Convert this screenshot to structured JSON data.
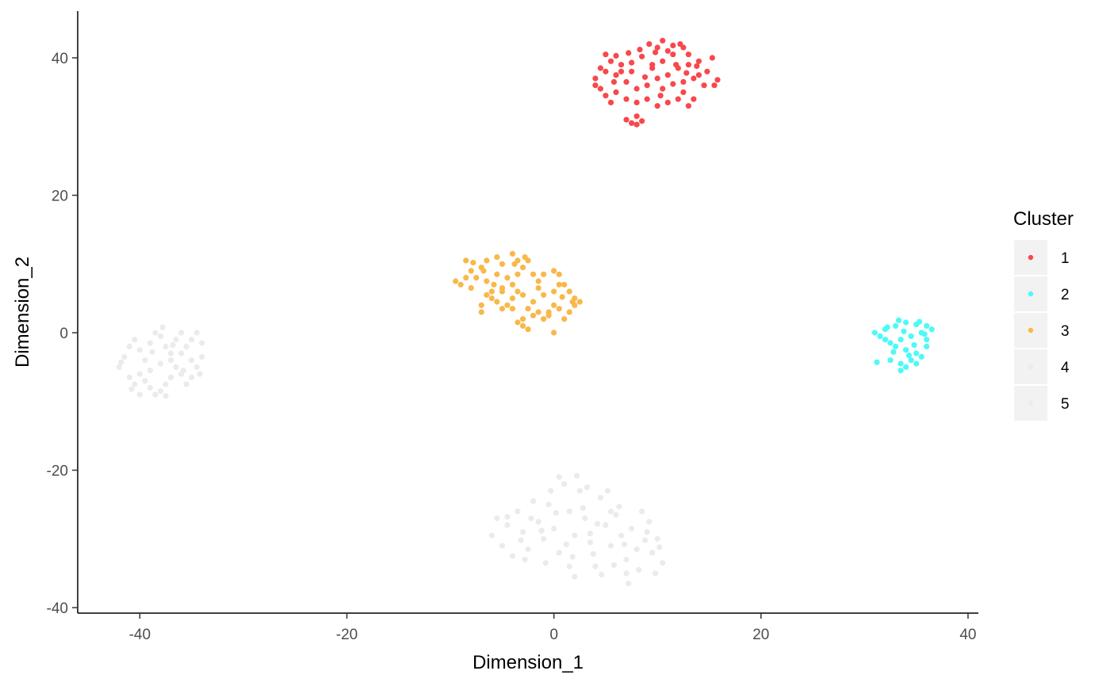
{
  "chart_data": {
    "type": "scatter",
    "title": "",
    "xlabel": "Dimension_1",
    "ylabel": "Dimension_2",
    "xlim": [
      -46,
      41
    ],
    "ylim": [
      -40.8,
      46.8
    ],
    "x_ticks": [
      -40,
      -20,
      0,
      20,
      40
    ],
    "y_ticks": [
      -40,
      -20,
      0,
      20,
      40
    ],
    "grid": false,
    "legend": {
      "title": "Cluster",
      "placement": "right"
    },
    "series": [
      {
        "name": "1",
        "color": "#F8484C",
        "points": [
          [
            5.0,
            40.5
          ],
          [
            6.0,
            40.3
          ],
          [
            7.5,
            39.3
          ],
          [
            8.5,
            40.2
          ],
          [
            9.5,
            39.0
          ],
          [
            10.5,
            42.5
          ],
          [
            11.5,
            41.8
          ],
          [
            12.5,
            41.5
          ],
          [
            13.0,
            40.5
          ],
          [
            14.0,
            39.5
          ],
          [
            15.3,
            40.0
          ],
          [
            14.8,
            38.0
          ],
          [
            15.8,
            36.8
          ],
          [
            15.5,
            36.0
          ],
          [
            13.5,
            37.0
          ],
          [
            12.5,
            36.5
          ],
          [
            11.0,
            37.5
          ],
          [
            10.0,
            37.0
          ],
          [
            9.0,
            36.0
          ],
          [
            8.0,
            35.5
          ],
          [
            7.0,
            36.5
          ],
          [
            6.0,
            37.5
          ],
          [
            5.0,
            38.0
          ],
          [
            4.5,
            38.5
          ],
          [
            4.0,
            37.0
          ],
          [
            4.0,
            36.0
          ],
          [
            5.0,
            34.5
          ],
          [
            6.0,
            35.0
          ],
          [
            5.5,
            33.5
          ],
          [
            7.0,
            34.0
          ],
          [
            8.0,
            33.5
          ],
          [
            9.0,
            34.0
          ],
          [
            10.0,
            33.0
          ],
          [
            11.0,
            33.5
          ],
          [
            12.0,
            34.0
          ],
          [
            13.0,
            33.0
          ],
          [
            13.5,
            34.0
          ],
          [
            12.5,
            35.0
          ],
          [
            10.5,
            35.5
          ],
          [
            9.5,
            38.5
          ],
          [
            10.5,
            39.5
          ],
          [
            11.5,
            40.5
          ],
          [
            12.0,
            38.5
          ],
          [
            13.0,
            39.0
          ],
          [
            14.0,
            37.5
          ],
          [
            7.5,
            38.0
          ],
          [
            6.5,
            39.0
          ],
          [
            5.5,
            39.5
          ],
          [
            8.0,
            31.5
          ],
          [
            8.5,
            30.8
          ],
          [
            7.5,
            30.5
          ],
          [
            7.0,
            31.0
          ],
          [
            8.0,
            30.3
          ],
          [
            8.8,
            37.2
          ],
          [
            9.8,
            40.8
          ],
          [
            11.0,
            41.0
          ],
          [
            12.2,
            42.0
          ],
          [
            6.5,
            38.0
          ],
          [
            5.8,
            36.5
          ],
          [
            4.5,
            35.5
          ],
          [
            14.5,
            36.0
          ],
          [
            12.8,
            37.8
          ],
          [
            11.8,
            39.0
          ],
          [
            9.2,
            42.0
          ],
          [
            8.3,
            41.2
          ],
          [
            7.2,
            40.7
          ],
          [
            10.3,
            34.5
          ],
          [
            11.5,
            36.2
          ],
          [
            13.8,
            38.8
          ],
          [
            10.0,
            41.5
          ]
        ]
      },
      {
        "name": "2",
        "color": "#4EF9F7",
        "points": [
          [
            31.0,
            0.0
          ],
          [
            32.0,
            0.5
          ],
          [
            33.0,
            1.0
          ],
          [
            34.0,
            1.5
          ],
          [
            35.0,
            1.2
          ],
          [
            36.0,
            1.0
          ],
          [
            36.5,
            0.5
          ],
          [
            35.5,
            0.0
          ],
          [
            34.5,
            -0.5
          ],
          [
            33.5,
            -1.0
          ],
          [
            32.5,
            -1.5
          ],
          [
            32.0,
            -1.0
          ],
          [
            31.5,
            -0.5
          ],
          [
            33.0,
            -2.0
          ],
          [
            34.0,
            -2.5
          ],
          [
            35.0,
            -3.0
          ],
          [
            36.0,
            -2.0
          ],
          [
            35.5,
            -3.5
          ],
          [
            34.5,
            -4.0
          ],
          [
            33.5,
            -4.5
          ],
          [
            32.5,
            -4.0
          ],
          [
            34.0,
            -5.0
          ],
          [
            33.5,
            -5.5
          ],
          [
            35.0,
            -4.5
          ],
          [
            36.0,
            -1.0
          ],
          [
            33.8,
            0.2
          ],
          [
            32.8,
            -2.8
          ],
          [
            34.8,
            -1.8
          ],
          [
            35.8,
            -0.2
          ],
          [
            32.2,
            0.8
          ],
          [
            33.3,
            1.8
          ],
          [
            34.3,
            -3.3
          ],
          [
            31.2,
            -4.3
          ],
          [
            35.3,
            1.6
          ]
        ]
      },
      {
        "name": "3",
        "color": "#F8B84A",
        "points": [
          [
            -9.5,
            7.5
          ],
          [
            -8.5,
            10.5
          ],
          [
            -8.0,
            9.0
          ],
          [
            -7.5,
            8.0
          ],
          [
            -7.0,
            9.5
          ],
          [
            -6.5,
            10.5
          ],
          [
            -5.5,
            11.0
          ],
          [
            -5.0,
            10.0
          ],
          [
            -4.0,
            11.5
          ],
          [
            -3.5,
            10.5
          ],
          [
            -3.0,
            9.5
          ],
          [
            -2.5,
            10.5
          ],
          [
            -2.0,
            8.5
          ],
          [
            -1.5,
            7.5
          ],
          [
            -1.0,
            8.5
          ],
          [
            0.0,
            9.0
          ],
          [
            0.5,
            8.5
          ],
          [
            0.5,
            7.0
          ],
          [
            1.0,
            7.0
          ],
          [
            1.5,
            6.0
          ],
          [
            2.0,
            5.0
          ],
          [
            2.5,
            4.5
          ],
          [
            2.0,
            4.0
          ],
          [
            1.5,
            3.0
          ],
          [
            0.5,
            3.5
          ],
          [
            0.0,
            4.0
          ],
          [
            -0.5,
            3.0
          ],
          [
            -1.0,
            2.0
          ],
          [
            -1.5,
            3.0
          ],
          [
            -2.0,
            2.5
          ],
          [
            -2.5,
            3.5
          ],
          [
            -3.0,
            2.0
          ],
          [
            -3.5,
            1.5
          ],
          [
            -3.0,
            1.0
          ],
          [
            -4.0,
            3.5
          ],
          [
            -4.5,
            4.0
          ],
          [
            -5.0,
            3.5
          ],
          [
            -5.5,
            4.5
          ],
          [
            -6.0,
            5.0
          ],
          [
            -6.5,
            5.5
          ],
          [
            -7.0,
            4.0
          ],
          [
            -7.0,
            3.0
          ],
          [
            -6.0,
            6.0
          ],
          [
            -5.0,
            6.5
          ],
          [
            -4.0,
            7.0
          ],
          [
            -3.5,
            6.0
          ],
          [
            -3.0,
            5.5
          ],
          [
            -4.5,
            8.0
          ],
          [
            -5.5,
            8.5
          ],
          [
            -6.5,
            7.5
          ],
          [
            -8.0,
            6.5
          ],
          [
            -8.5,
            8.0
          ],
          [
            -9.0,
            7.0
          ],
          [
            -2.0,
            4.5
          ],
          [
            -1.0,
            5.5
          ],
          [
            0.0,
            6.0
          ],
          [
            0.0,
            0.0
          ],
          [
            -2.5,
            0.5
          ],
          [
            1.0,
            2.0
          ],
          [
            -4.0,
            5.0
          ],
          [
            -5.0,
            6.0
          ],
          [
            -3.5,
            8.5
          ],
          [
            -6.8,
            9.0
          ],
          [
            -7.8,
            10.2
          ],
          [
            -1.5,
            6.5
          ],
          [
            0.8,
            5.2
          ],
          [
            1.8,
            4.5
          ],
          [
            -0.5,
            2.5
          ],
          [
            -3.8,
            10.0
          ],
          [
            -2.8,
            11.0
          ],
          [
            -5.8,
            7.0
          ]
        ]
      },
      {
        "name": "4",
        "color": "#EBEBEB",
        "points": [
          [
            -42.0,
            -5.0
          ],
          [
            -41.5,
            -3.5
          ],
          [
            -41.0,
            -2.0
          ],
          [
            -40.5,
            -1.0
          ],
          [
            -40.0,
            -2.5
          ],
          [
            -39.5,
            -4.0
          ],
          [
            -39.0,
            -1.5
          ],
          [
            -38.5,
            0.0
          ],
          [
            -38.0,
            -0.5
          ],
          [
            -37.5,
            -2.0
          ],
          [
            -37.0,
            -3.0
          ],
          [
            -36.5,
            -1.0
          ],
          [
            -36.0,
            0.0
          ],
          [
            -35.5,
            -2.0
          ],
          [
            -35.0,
            -1.0
          ],
          [
            -34.5,
            0.0
          ],
          [
            -34.0,
            -1.5
          ],
          [
            -34.0,
            -3.5
          ],
          [
            -34.5,
            -5.0
          ],
          [
            -35.0,
            -6.5
          ],
          [
            -35.5,
            -7.5
          ],
          [
            -36.0,
            -6.0
          ],
          [
            -36.5,
            -5.0
          ],
          [
            -37.0,
            -6.5
          ],
          [
            -37.5,
            -7.5
          ],
          [
            -38.0,
            -8.5
          ],
          [
            -38.5,
            -9.0
          ],
          [
            -39.0,
            -8.0
          ],
          [
            -39.5,
            -7.0
          ],
          [
            -40.0,
            -6.0
          ],
          [
            -40.5,
            -7.5
          ],
          [
            -41.0,
            -6.5
          ],
          [
            -39.0,
            -5.5
          ],
          [
            -38.0,
            -4.5
          ],
          [
            -37.0,
            -4.0
          ],
          [
            -36.0,
            -3.0
          ],
          [
            -35.0,
            -4.0
          ],
          [
            -40.0,
            -9.0
          ],
          [
            -37.5,
            -9.2
          ],
          [
            -38.8,
            -2.8
          ],
          [
            -36.8,
            -1.8
          ],
          [
            -35.8,
            -5.5
          ],
          [
            -34.2,
            -6.0
          ],
          [
            -41.8,
            -4.3
          ],
          [
            -37.8,
            0.8
          ],
          [
            -40.8,
            -8.2
          ]
        ]
      },
      {
        "name": "5",
        "color": "#EBEBEB",
        "points": [
          [
            -6.0,
            -29.5
          ],
          [
            -5.5,
            -27.0
          ],
          [
            -5.0,
            -31.0
          ],
          [
            -4.5,
            -28.0
          ],
          [
            -4.0,
            -32.5
          ],
          [
            -3.5,
            -26.0
          ],
          [
            -3.0,
            -29.0
          ],
          [
            -2.5,
            -31.5
          ],
          [
            -2.0,
            -24.5
          ],
          [
            -1.5,
            -27.5
          ],
          [
            -1.0,
            -30.0
          ],
          [
            -0.5,
            -25.0
          ],
          [
            0.0,
            -28.5
          ],
          [
            0.5,
            -32.0
          ],
          [
            1.0,
            -22.0
          ],
          [
            1.5,
            -26.0
          ],
          [
            2.0,
            -29.5
          ],
          [
            2.5,
            -23.0
          ],
          [
            3.0,
            -27.0
          ],
          [
            3.5,
            -30.5
          ],
          [
            4.0,
            -34.0
          ],
          [
            4.5,
            -24.0
          ],
          [
            5.0,
            -28.0
          ],
          [
            5.5,
            -31.0
          ],
          [
            6.0,
            -26.5
          ],
          [
            6.5,
            -29.5
          ],
          [
            7.0,
            -33.0
          ],
          [
            7.5,
            -28.5
          ],
          [
            8.0,
            -31.5
          ],
          [
            8.5,
            -26.0
          ],
          [
            9.0,
            -29.0
          ],
          [
            9.5,
            -32.0
          ],
          [
            10.0,
            -30.0
          ],
          [
            10.5,
            -33.5
          ],
          [
            9.8,
            -35.0
          ],
          [
            7.2,
            -36.5
          ],
          [
            7.0,
            -35.0
          ],
          [
            2.0,
            -35.5
          ],
          [
            1.5,
            -34.0
          ],
          [
            0.5,
            -21.0
          ],
          [
            2.2,
            -20.8
          ],
          [
            3.2,
            -22.5
          ],
          [
            5.2,
            -23.0
          ],
          [
            6.3,
            -25.3
          ],
          [
            -0.8,
            -33.5
          ],
          [
            -2.8,
            -33.0
          ],
          [
            -4.5,
            -26.8
          ],
          [
            3.8,
            -32.2
          ],
          [
            5.8,
            -33.8
          ],
          [
            8.2,
            -34.5
          ],
          [
            4.2,
            -27.8
          ],
          [
            2.8,
            -25.5
          ],
          [
            1.2,
            -30.8
          ],
          [
            -1.2,
            -28.8
          ],
          [
            -3.2,
            -30.2
          ],
          [
            6.8,
            -30.8
          ],
          [
            8.8,
            -30.2
          ],
          [
            10.2,
            -31.2
          ],
          [
            9.2,
            -27.5
          ],
          [
            0.2,
            -26.2
          ],
          [
            -2.2,
            -27.0
          ],
          [
            3.5,
            -29.2
          ],
          [
            5.5,
            -26.0
          ],
          [
            -0.3,
            -23.0
          ],
          [
            4.6,
            -35.2
          ],
          [
            1.8,
            -32.6
          ]
        ]
      }
    ]
  }
}
